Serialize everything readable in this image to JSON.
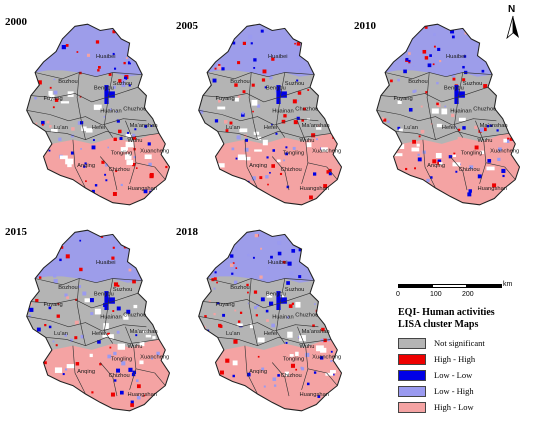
{
  "north_label": "N",
  "panels": [
    {
      "year": "2000"
    },
    {
      "year": "2005"
    },
    {
      "year": "2010"
    },
    {
      "year": "2015"
    },
    {
      "year": "2018"
    }
  ],
  "cities": [
    "Bozhou",
    "Fuyang",
    "Huaibei",
    "Suzhou",
    "Bengbu",
    "Huainan",
    "Chuzhou",
    "Lu'an",
    "Hefei",
    "Ma'anshan",
    "Wuhu",
    "Tongling",
    "Xuancheng",
    "Anqing",
    "Chizhou",
    "Huangshan"
  ],
  "scale": {
    "ticks": [
      "0",
      "100",
      "200"
    ],
    "unit": "km"
  },
  "legend": {
    "title_line1": "EQI- Human activities",
    "title_line2": "LISA cluster Maps",
    "items": [
      {
        "label": "Not significant",
        "color": "#b4b4b4"
      },
      {
        "label": "High - High",
        "color": "#ee0000"
      },
      {
        "label": "Low - Low",
        "color": "#0000e6"
      },
      {
        "label": "Low - High",
        "color": "#9a9af0"
      },
      {
        "label": "High - Low",
        "color": "#f4a3a3"
      }
    ]
  }
}
